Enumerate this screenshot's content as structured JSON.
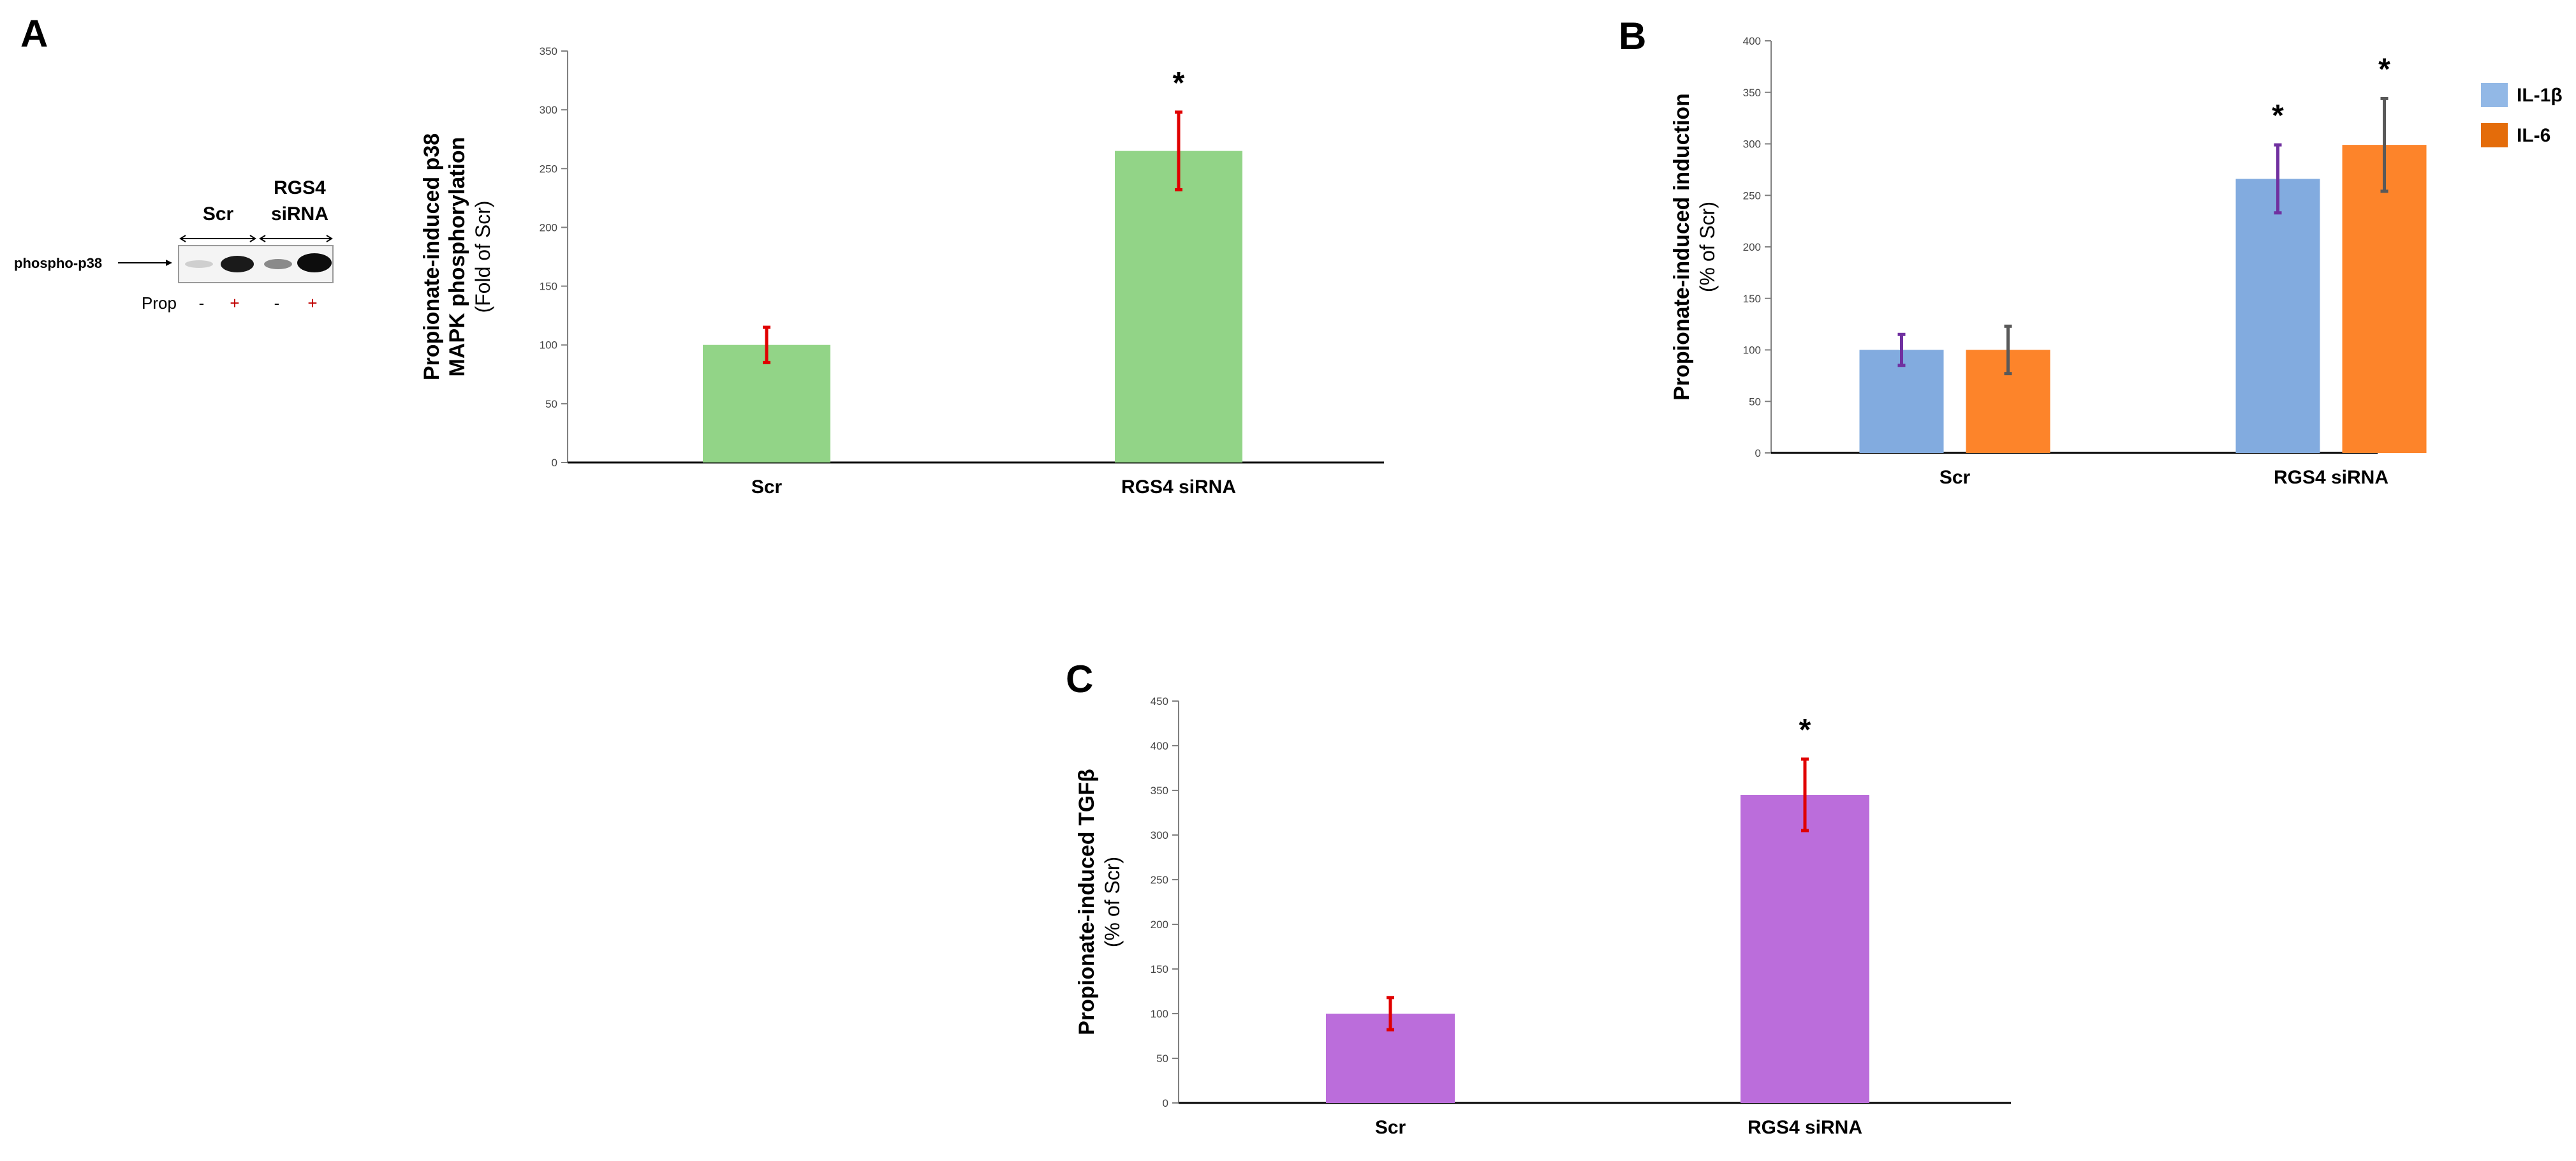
{
  "panels": {
    "a": "A",
    "b": "B",
    "c": "C"
  },
  "blot": {
    "group_scr": "Scr",
    "group_rgs4_line1": "RGS4",
    "group_rgs4_line2": "siRNA",
    "band_label": "phospho-p38",
    "treatment_label": "Prop",
    "lane_signs": [
      "-",
      "+",
      "-",
      "+"
    ],
    "colors": {
      "minus": "#000000",
      "plus": "#c00000"
    }
  },
  "chart_data": [
    {
      "type": "bar",
      "panel": "A",
      "categories": [
        "Scr",
        "RGS4 siRNA"
      ],
      "series": [
        {
          "values": [
            100,
            265
          ],
          "errors": [
            15,
            33
          ],
          "color": "#92d487",
          "error_color": "#e00000"
        }
      ],
      "ylabel_lines": [
        "Propionate-induced  p38",
        "MAPK phosphorylation"
      ],
      "ylabel_sub": "(Fold of Scr)",
      "ylim": [
        0,
        350
      ],
      "yticks": [
        0,
        50,
        100,
        150,
        200,
        250,
        300,
        350
      ],
      "significance": [
        "",
        "*"
      ],
      "grid": false,
      "legend": null
    },
    {
      "type": "bar",
      "panel": "B",
      "categories": [
        "Scr",
        "RGS4 siRNA"
      ],
      "series": [
        {
          "name": "IL-1β",
          "values": [
            100,
            266
          ],
          "errors": [
            15,
            33
          ],
          "color": "#82abdf",
          "error_color": "#7030a0"
        },
        {
          "name": "IL-6",
          "values": [
            100,
            299
          ],
          "errors": [
            23,
            45
          ],
          "color": "#fd842a",
          "error_color": "#595959"
        }
      ],
      "ylabel_lines": [
        "Propionate-induced induction"
      ],
      "ylabel_sub": "(% of Scr)",
      "ylim": [
        0,
        400
      ],
      "yticks": [
        0,
        50,
        100,
        150,
        200,
        250,
        300,
        350,
        400
      ],
      "significance": [
        [
          "",
          ""
        ],
        [
          "*",
          "*"
        ]
      ],
      "grid": false,
      "legend": "top-right",
      "legend_colors": [
        "#92b8e6",
        "#e46c0a"
      ]
    },
    {
      "type": "bar",
      "panel": "C",
      "categories": [
        "Scr",
        "RGS4 siRNA"
      ],
      "series": [
        {
          "values": [
            100,
            345
          ],
          "errors": [
            18,
            40
          ],
          "color": "#bb6ddb",
          "error_color": "#e00000"
        }
      ],
      "ylabel_lines": [
        "Propionate-induced TGFβ"
      ],
      "ylabel_sub": "(% of Scr)",
      "ylim": [
        0,
        450
      ],
      "yticks": [
        0,
        50,
        100,
        150,
        200,
        250,
        300,
        350,
        400,
        450
      ],
      "significance": [
        "",
        "*"
      ],
      "grid": false,
      "legend": null
    }
  ]
}
